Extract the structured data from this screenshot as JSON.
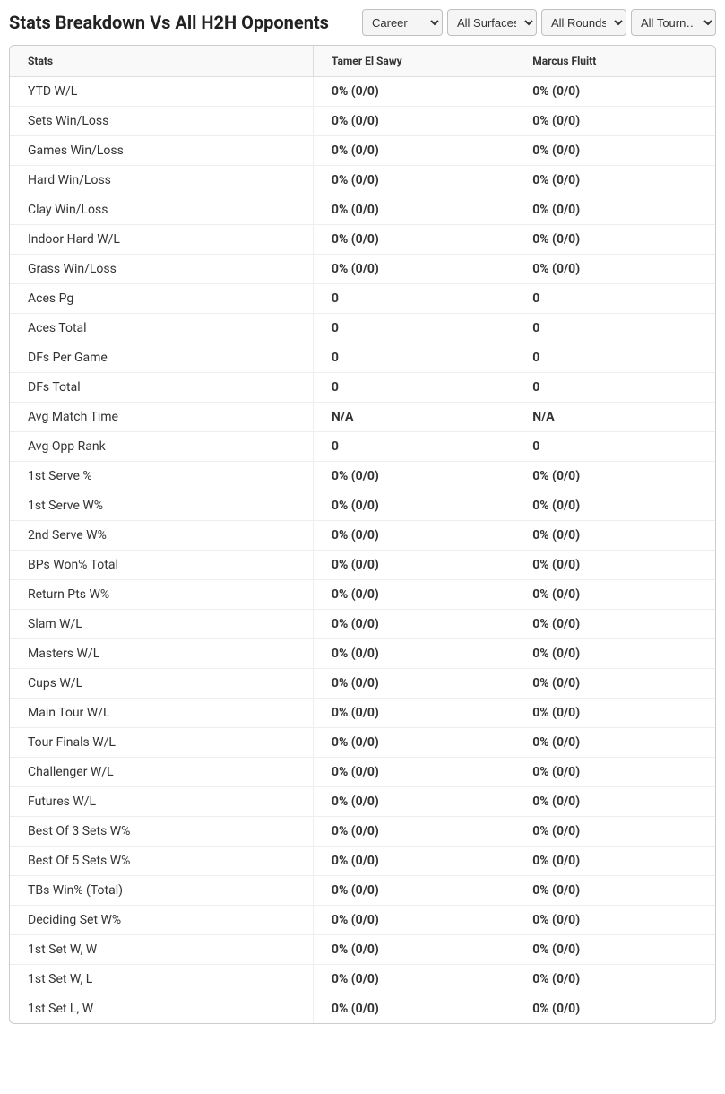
{
  "header": {
    "title": "Stats Breakdown Vs All H2H Opponents"
  },
  "filters": {
    "career": {
      "selected": "Career",
      "options": [
        "Career"
      ]
    },
    "surfaces": {
      "selected": "All Surfaces",
      "options": [
        "All Surfaces"
      ]
    },
    "rounds": {
      "selected": "All Rounds",
      "options": [
        "All Rounds"
      ]
    },
    "tournaments": {
      "selected": "All Tourn…",
      "options": [
        "All Tourn…"
      ]
    }
  },
  "table": {
    "columns": {
      "stat": "Stats",
      "player1": "Tamer El Sawy",
      "player2": "Marcus Fluitt"
    },
    "rows": [
      {
        "stat": "YTD W/L",
        "p1": "0% (0/0)",
        "p2": "0% (0/0)"
      },
      {
        "stat": "Sets Win/Loss",
        "p1": "0% (0/0)",
        "p2": "0% (0/0)"
      },
      {
        "stat": "Games Win/Loss",
        "p1": "0% (0/0)",
        "p2": "0% (0/0)"
      },
      {
        "stat": "Hard Win/Loss",
        "p1": "0% (0/0)",
        "p2": "0% (0/0)"
      },
      {
        "stat": "Clay Win/Loss",
        "p1": "0% (0/0)",
        "p2": "0% (0/0)"
      },
      {
        "stat": "Indoor Hard W/L",
        "p1": "0% (0/0)",
        "p2": "0% (0/0)"
      },
      {
        "stat": "Grass Win/Loss",
        "p1": "0% (0/0)",
        "p2": "0% (0/0)"
      },
      {
        "stat": "Aces Pg",
        "p1": "0",
        "p2": "0"
      },
      {
        "stat": "Aces Total",
        "p1": "0",
        "p2": "0"
      },
      {
        "stat": "DFs Per Game",
        "p1": "0",
        "p2": "0"
      },
      {
        "stat": "DFs Total",
        "p1": "0",
        "p2": "0"
      },
      {
        "stat": "Avg Match Time",
        "p1": "N/A",
        "p2": "N/A"
      },
      {
        "stat": "Avg Opp Rank",
        "p1": "0",
        "p2": "0"
      },
      {
        "stat": "1st Serve %",
        "p1": "0% (0/0)",
        "p2": "0% (0/0)"
      },
      {
        "stat": "1st Serve W%",
        "p1": "0% (0/0)",
        "p2": "0% (0/0)"
      },
      {
        "stat": "2nd Serve W%",
        "p1": "0% (0/0)",
        "p2": "0% (0/0)"
      },
      {
        "stat": "BPs Won% Total",
        "p1": "0% (0/0)",
        "p2": "0% (0/0)"
      },
      {
        "stat": "Return Pts W%",
        "p1": "0% (0/0)",
        "p2": "0% (0/0)"
      },
      {
        "stat": "Slam W/L",
        "p1": "0% (0/0)",
        "p2": "0% (0/0)"
      },
      {
        "stat": "Masters W/L",
        "p1": "0% (0/0)",
        "p2": "0% (0/0)"
      },
      {
        "stat": "Cups W/L",
        "p1": "0% (0/0)",
        "p2": "0% (0/0)"
      },
      {
        "stat": "Main Tour W/L",
        "p1": "0% (0/0)",
        "p2": "0% (0/0)"
      },
      {
        "stat": "Tour Finals W/L",
        "p1": "0% (0/0)",
        "p2": "0% (0/0)"
      },
      {
        "stat": "Challenger W/L",
        "p1": "0% (0/0)",
        "p2": "0% (0/0)"
      },
      {
        "stat": "Futures W/L",
        "p1": "0% (0/0)",
        "p2": "0% (0/0)"
      },
      {
        "stat": "Best Of 3 Sets W%",
        "p1": "0% (0/0)",
        "p2": "0% (0/0)"
      },
      {
        "stat": "Best Of 5 Sets W%",
        "p1": "0% (0/0)",
        "p2": "0% (0/0)"
      },
      {
        "stat": "TBs Win% (Total)",
        "p1": "0% (0/0)",
        "p2": "0% (0/0)"
      },
      {
        "stat": "Deciding Set W%",
        "p1": "0% (0/0)",
        "p2": "0% (0/0)"
      },
      {
        "stat": "1st Set W, W",
        "p1": "0% (0/0)",
        "p2": "0% (0/0)"
      },
      {
        "stat": "1st Set W, L",
        "p1": "0% (0/0)",
        "p2": "0% (0/0)"
      },
      {
        "stat": "1st Set L, W",
        "p1": "0% (0/0)",
        "p2": "0% (0/0)"
      }
    ]
  },
  "styling": {
    "background_color": "#ffffff",
    "header_bg": "#f9f9f9",
    "border_color": "#cccccc",
    "row_border_color": "#eeeeee",
    "text_color": "#333333",
    "title_color": "#222222",
    "title_fontsize": 20,
    "header_fontsize": 12,
    "cell_fontsize": 14
  }
}
